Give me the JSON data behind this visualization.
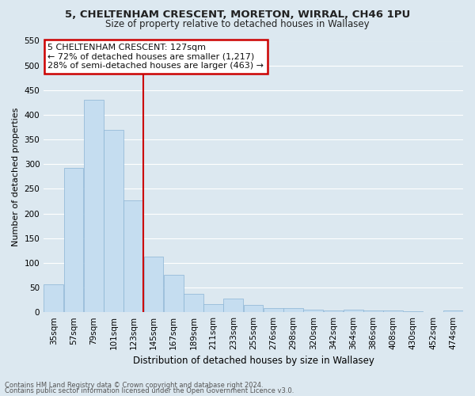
{
  "title": "5, CHELTENHAM CRESCENT, MORETON, WIRRAL, CH46 1PU",
  "subtitle": "Size of property relative to detached houses in Wallasey",
  "xlabel": "Distribution of detached houses by size in Wallasey",
  "ylabel": "Number of detached properties",
  "bar_color": "#c5ddf0",
  "bar_edge_color": "#8ab4d4",
  "categories": [
    "35sqm",
    "57sqm",
    "79sqm",
    "101sqm",
    "123sqm",
    "145sqm",
    "167sqm",
    "189sqm",
    "211sqm",
    "233sqm",
    "255sqm",
    "276sqm",
    "298sqm",
    "320sqm",
    "342sqm",
    "364sqm",
    "386sqm",
    "408sqm",
    "430sqm",
    "452sqm",
    "474sqm"
  ],
  "values": [
    57,
    293,
    430,
    370,
    226,
    113,
    76,
    38,
    16,
    28,
    14,
    9,
    8,
    5,
    3,
    5,
    3,
    4,
    2,
    0,
    4
  ],
  "ylim": [
    0,
    550
  ],
  "yticks": [
    0,
    50,
    100,
    150,
    200,
    250,
    300,
    350,
    400,
    450,
    500,
    550
  ],
  "vline_idx": 4,
  "marker_label": "5 CHELTENHAM CRESCENT: 127sqm",
  "marker_smaller": "← 72% of detached houses are smaller (1,217)",
  "marker_larger": "28% of semi-detached houses are larger (463) →",
  "footnote1": "Contains HM Land Registry data © Crown copyright and database right 2024.",
  "footnote2": "Contains public sector information licensed under the Open Government Licence v3.0.",
  "background_color": "#dce8f0",
  "grid_color": "#ffffff",
  "annotation_box_color": "#ffffff",
  "annotation_box_edge": "#cc0000",
  "vline_color": "#cc0000",
  "title_fontsize": 9.5,
  "subtitle_fontsize": 8.5,
  "xlabel_fontsize": 8.5,
  "ylabel_fontsize": 8,
  "tick_fontsize": 7.5,
  "annot_fontsize": 8,
  "footnote_fontsize": 6
}
